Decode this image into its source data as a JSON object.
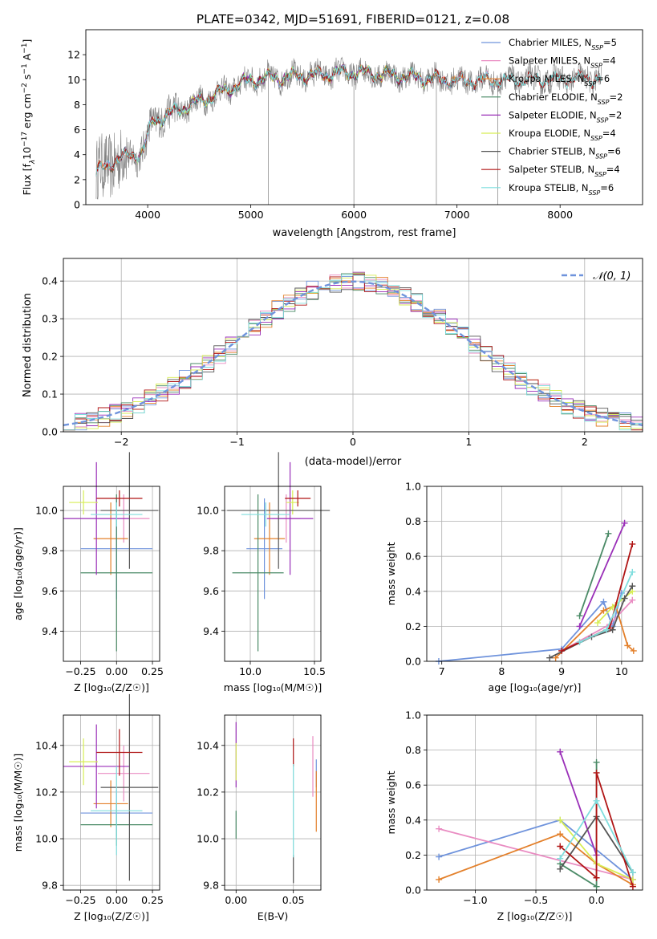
{
  "figure_title": "PLATE=0342, MJD=51691, FIBERID=0121, z=0.08",
  "colors": {
    "Chabrier MILES": "#6f93dc",
    "Salpeter MILES": "#e98cc2",
    "Kroupa MILES": "#e3802b",
    "Chabrier ELODIE": "#4a8a66",
    "Salpeter ELODIE": "#9a2fb8",
    "Kroupa ELODIE": "#d8ee55",
    "Chabrier STELIB": "#555555",
    "Salpeter STELIB": "#b01515",
    "Kroupa STELIB": "#7fdede"
  },
  "chart_data": [
    {
      "type": "line",
      "title": "PLATE=0342, MJD=51691, FIBERID=0121, z=0.08",
      "xlabel": "wavelength [Angstrom, rest frame]",
      "ylabel": "Flux [f",
      "xlim": [
        3400,
        8800
      ],
      "ylim": [
        0,
        14
      ],
      "xticks": [
        "4000",
        "5000",
        "6000",
        "7000",
        "8000"
      ],
      "yticks": [
        "0",
        "2",
        "4",
        "6",
        "8",
        "10",
        "12"
      ],
      "grid": false,
      "legend": "upper right",
      "data_series": [
        {
          "name": "data",
          "color": "#808080",
          "wavelength_range": [
            3500,
            8400
          ]
        }
      ],
      "series": [
        {
          "name": "Chabrier MILES",
          "nssp": "5",
          "range": [
            3500,
            7400
          ]
        },
        {
          "name": "Salpeter MILES",
          "nssp": "4",
          "range": [
            3500,
            7400
          ]
        },
        {
          "name": "Kroupa MILES",
          "nssp": "6",
          "range": [
            3500,
            7400
          ]
        },
        {
          "name": "Chabrier ELODIE",
          "nssp": "2",
          "range": [
            3900,
            6800
          ]
        },
        {
          "name": "Salpeter ELODIE",
          "nssp": "2",
          "range": [
            3900,
            6800
          ]
        },
        {
          "name": "Kroupa ELODIE",
          "nssp": "4",
          "range": [
            3900,
            6800
          ]
        },
        {
          "name": "Chabrier STELIB",
          "nssp": "6",
          "range": [
            3500,
            8400
          ]
        },
        {
          "name": "Salpeter STELIB",
          "nssp": "4",
          "range": [
            3500,
            8400
          ]
        },
        {
          "name": "Kroupa STELIB",
          "nssp": "6",
          "range": [
            3500,
            8400
          ]
        }
      ]
    },
    {
      "type": "histogram",
      "xlabel": "(data-model)/error",
      "ylabel": "Normed distribution",
      "xlim": [
        -2.5,
        2.5
      ],
      "ylim": [
        0,
        0.46
      ],
      "xticks": [
        "−2",
        "−1",
        "0",
        "1",
        "2"
      ],
      "yticks": [
        "0.0",
        "0.1",
        "0.2",
        "0.3",
        "0.4"
      ],
      "grid": true,
      "legend": "upper right",
      "reference_curve": {
        "label": "𝒩(0, 1)",
        "color": "#6f93dc",
        "mean": 0,
        "sigma": 1
      },
      "bins": {
        "start": -2.5,
        "width": 0.1,
        "count": 50
      }
    },
    {
      "type": "scatter",
      "xlabel": "Z [log₁₀(Z/Z☉)]",
      "ylabel": "age  [log₁₀(age/yr)]",
      "xlim": [
        -0.37,
        0.3
      ],
      "ylim": [
        9.25,
        10.12
      ],
      "xticks": [
        "−0.25",
        "0.00",
        "0.25"
      ],
      "yticks": [
        "9.4",
        "9.6",
        "9.8",
        "10.0"
      ],
      "grid": true,
      "points": [
        {
          "series": "Chabrier MILES",
          "x": 0.0,
          "xerr": 0.25,
          "y": 9.81,
          "yerr": 0.25
        },
        {
          "series": "Salpeter MILES",
          "x": 0.05,
          "xerr": 0.18,
          "y": 9.96,
          "yerr": 0.12
        },
        {
          "series": "Kroupa MILES",
          "x": -0.04,
          "xerr": 0.12,
          "y": 9.86,
          "yerr": 0.18
        },
        {
          "series": "Chabrier ELODIE",
          "x": 0.0,
          "xerr": 0.25,
          "y": 9.69,
          "yerr": 0.39
        },
        {
          "series": "Salpeter ELODIE",
          "x": -0.14,
          "xerr": 0.23,
          "y": 9.96,
          "yerr": 0.28
        },
        {
          "series": "Kroupa ELODIE",
          "x": -0.23,
          "xerr": 0.1,
          "y": 10.04,
          "yerr": 0.06
        },
        {
          "series": "Chabrier STELIB",
          "x": 0.09,
          "xerr": 0.2,
          "y": 10.0,
          "yerr": 0.29
        },
        {
          "series": "Salpeter STELIB",
          "x": 0.02,
          "xerr": 0.16,
          "y": 10.06,
          "yerr": 0.04
        },
        {
          "series": "Kroupa STELIB",
          "x": 0.0,
          "xerr": 0.18,
          "y": 9.98,
          "yerr": 0.06
        }
      ]
    },
    {
      "type": "scatter",
      "xlabel": "mass [log₁₀(M/M☉)]",
      "ylabel": "",
      "xlim": [
        9.8,
        10.55
      ],
      "ylim": [
        9.25,
        10.12
      ],
      "xticks": [
        "10.0",
        "10.5"
      ],
      "yticks": [
        "9.4",
        "9.6",
        "9.8",
        "10.0"
      ],
      "grid": true,
      "points": [
        {
          "series": "Chabrier MILES",
          "x": 10.11,
          "xerr": 0.14,
          "y": 9.81,
          "yerr": 0.25
        },
        {
          "series": "Salpeter MILES",
          "x": 10.28,
          "xerr": 0.11,
          "y": 9.96,
          "yerr": 0.12
        },
        {
          "series": "Kroupa MILES",
          "x": 10.15,
          "xerr": 0.12,
          "y": 9.86,
          "yerr": 0.18
        },
        {
          "series": "Chabrier ELODIE",
          "x": 10.06,
          "xerr": 0.2,
          "y": 9.69,
          "yerr": 0.39
        },
        {
          "series": "Salpeter ELODIE",
          "x": 10.31,
          "xerr": 0.18,
          "y": 9.96,
          "yerr": 0.28
        },
        {
          "series": "Kroupa ELODIE",
          "x": 10.33,
          "xerr": 0.05,
          "y": 10.04,
          "yerr": 0.06
        },
        {
          "series": "Chabrier STELIB",
          "x": 10.22,
          "xerr": 0.4,
          "y": 10.0,
          "yerr": 0.29
        },
        {
          "series": "Salpeter STELIB",
          "x": 10.37,
          "xerr": 0.1,
          "y": 10.06,
          "yerr": 0.04
        },
        {
          "series": "Kroupa STELIB",
          "x": 10.12,
          "xerr": 0.19,
          "y": 9.98,
          "yerr": 0.06
        }
      ]
    },
    {
      "type": "line",
      "xlabel": "age  [log₁₀(age/yr)]",
      "ylabel": "mass weight",
      "xlim": [
        6.75,
        10.35
      ],
      "ylim": [
        0,
        1.0
      ],
      "xticks": [
        "7",
        "8",
        "9",
        "10"
      ],
      "yticks": [
        "0.0",
        "0.2",
        "0.4",
        "0.6",
        "0.8",
        "1.0"
      ],
      "grid": true,
      "series": [
        {
          "name": "Chabrier MILES",
          "points": [
            [
              6.95,
              0.0
            ],
            [
              9.0,
              0.07
            ],
            [
              9.7,
              0.34
            ],
            [
              9.85,
              0.2
            ],
            [
              10.0,
              0.39
            ]
          ]
        },
        {
          "name": "Salpeter MILES",
          "points": [
            [
              9.0,
              0.06
            ],
            [
              9.8,
              0.21
            ],
            [
              10.18,
              0.35
            ]
          ]
        },
        {
          "name": "Kroupa MILES",
          "points": [
            [
              8.9,
              0.02
            ],
            [
              9.7,
              0.29
            ],
            [
              9.9,
              0.32
            ],
            [
              10.1,
              0.09
            ],
            [
              10.2,
              0.06
            ]
          ]
        },
        {
          "name": "Chabrier ELODIE",
          "points": [
            [
              9.3,
              0.26
            ],
            [
              9.78,
              0.73
            ]
          ]
        },
        {
          "name": "Salpeter ELODIE",
          "points": [
            [
              9.3,
              0.2
            ],
            [
              10.05,
              0.79
            ]
          ]
        },
        {
          "name": "Kroupa ELODIE",
          "points": [
            [
              9.6,
              0.22
            ],
            [
              9.85,
              0.31
            ],
            [
              10.18,
              0.4
            ]
          ]
        },
        {
          "name": "Chabrier STELIB",
          "points": [
            [
              8.8,
              0.02
            ],
            [
              9.5,
              0.14
            ],
            [
              9.85,
              0.18
            ],
            [
              10.05,
              0.36
            ],
            [
              10.18,
              0.43
            ]
          ]
        },
        {
          "name": "Salpeter STELIB",
          "points": [
            [
              9.0,
              0.06
            ],
            [
              9.8,
              0.19
            ],
            [
              10.18,
              0.67
            ]
          ]
        },
        {
          "name": "Kroupa STELIB",
          "points": [
            [
              9.3,
              0.11
            ],
            [
              9.75,
              0.18
            ],
            [
              10.18,
              0.51
            ]
          ]
        }
      ]
    },
    {
      "type": "scatter",
      "xlabel": "Z [log₁₀(Z/Z☉)]",
      "ylabel": "mass [log₁₀(M/M☉)]",
      "xlim": [
        -0.37,
        0.3
      ],
      "ylim": [
        9.78,
        10.53
      ],
      "xticks": [
        "−0.25",
        "0.00",
        "0.25"
      ],
      "yticks": [
        "9.8",
        "10.0",
        "10.2",
        "10.4"
      ],
      "grid": true,
      "points": [
        {
          "series": "Chabrier MILES",
          "x": 0.0,
          "xerr": 0.25,
          "y": 10.11,
          "yerr": 0.1
        },
        {
          "series": "Salpeter MILES",
          "x": 0.05,
          "xerr": 0.18,
          "y": 10.28,
          "yerr": 0.12
        },
        {
          "series": "Kroupa MILES",
          "x": -0.04,
          "xerr": 0.12,
          "y": 10.15,
          "yerr": 0.1
        },
        {
          "series": "Chabrier ELODIE",
          "x": 0.0,
          "xerr": 0.25,
          "y": 10.06,
          "yerr": 0.09
        },
        {
          "series": "Salpeter ELODIE",
          "x": -0.14,
          "xerr": 0.23,
          "y": 10.31,
          "yerr": 0.18
        },
        {
          "series": "Kroupa ELODIE",
          "x": -0.23,
          "xerr": 0.1,
          "y": 10.33,
          "yerr": 0.1
        },
        {
          "series": "Chabrier STELIB",
          "x": 0.09,
          "xerr": 0.2,
          "y": 10.22,
          "yerr": 0.4
        },
        {
          "series": "Salpeter STELIB",
          "x": 0.02,
          "xerr": 0.16,
          "y": 10.37,
          "yerr": 0.1
        },
        {
          "series": "Kroupa STELIB",
          "x": 0.0,
          "xerr": 0.18,
          "y": 10.12,
          "yerr": 0.19
        }
      ]
    },
    {
      "type": "scatter",
      "xlabel": "E(B-V)",
      "ylabel": "",
      "xlim": [
        -0.01,
        0.074
      ],
      "ylim": [
        9.78,
        10.53
      ],
      "xticks": [
        "0.00",
        "0.05"
      ],
      "yticks": [
        "9.8",
        "10.0",
        "10.2",
        "10.4"
      ],
      "grid": true,
      "points": [
        {
          "series": "Chabrier MILES",
          "x": 0.07,
          "y": 10.28,
          "yerr": 0.06
        },
        {
          "series": "Salpeter MILES",
          "x": 0.067,
          "y": 10.31,
          "yerr": 0.13
        },
        {
          "series": "Kroupa MILES",
          "x": 0.07,
          "y": 10.16,
          "yerr": 0.13
        },
        {
          "series": "Chabrier ELODIE",
          "x": 0.0,
          "y": 10.06,
          "yerr": 0.06
        },
        {
          "series": "Salpeter ELODIE",
          "x": 0.0,
          "y": 10.36,
          "yerr": 0.14
        },
        {
          "series": "Kroupa ELODIE",
          "x": 0.0,
          "y": 10.33,
          "yerr": 0.08
        },
        {
          "series": "Chabrier STELIB",
          "x": 0.05,
          "y": 9.87,
          "yerr": 0.06
        },
        {
          "series": "Salpeter STELIB",
          "x": 0.05,
          "y": 10.37,
          "yerr": 0.06
        },
        {
          "series": "Kroupa STELIB",
          "x": 0.05,
          "y": 10.12,
          "yerr": 0.2
        }
      ]
    },
    {
      "type": "line",
      "xlabel": "Z [log₁₀(Z/Z☉)]",
      "ylabel": "mass weight",
      "xlim": [
        -1.4,
        0.38
      ],
      "ylim": [
        0,
        1.0
      ],
      "xticks": [
        "−1.0",
        "−0.5",
        "0.0"
      ],
      "yticks": [
        "0.0",
        "0.2",
        "0.4",
        "0.6",
        "0.8",
        "1.0"
      ],
      "grid": true,
      "series": [
        {
          "name": "Chabrier MILES",
          "points": [
            [
              -1.3,
              0.19
            ],
            [
              -0.3,
              0.4
            ],
            [
              0.3,
              0.06
            ]
          ]
        },
        {
          "name": "Salpeter MILES",
          "points": [
            [
              -1.3,
              0.35
            ],
            [
              0.3,
              0.06
            ]
          ]
        },
        {
          "name": "Kroupa MILES",
          "points": [
            [
              -1.3,
              0.06
            ],
            [
              -0.3,
              0.32
            ],
            [
              0.0,
              0.15
            ],
            [
              0.3,
              0.03
            ]
          ]
        },
        {
          "name": "Chabrier ELODIE",
          "points": [
            [
              -0.3,
              0.15
            ],
            [
              0.0,
              0.02
            ],
            [
              0.0,
              0.73
            ]
          ]
        },
        {
          "name": "Salpeter ELODIE",
          "points": [
            [
              -0.3,
              0.79
            ],
            [
              0.0,
              0.2
            ]
          ]
        },
        {
          "name": "Kroupa ELODIE",
          "points": [
            [
              -0.3,
              0.4
            ],
            [
              0.0,
              0.15
            ],
            [
              0.3,
              0.06
            ]
          ]
        },
        {
          "name": "Chabrier STELIB",
          "points": [
            [
              -0.3,
              0.12
            ],
            [
              0.0,
              0.42
            ],
            [
              0.3,
              0.1
            ]
          ]
        },
        {
          "name": "Salpeter STELIB",
          "points": [
            [
              -0.3,
              0.25
            ],
            [
              0.0,
              0.07
            ],
            [
              0.0,
              0.67
            ],
            [
              0.3,
              0.02
            ]
          ]
        },
        {
          "name": "Kroupa STELIB",
          "points": [
            [
              -0.3,
              0.18
            ],
            [
              0.0,
              0.51
            ],
            [
              0.3,
              0.1
            ]
          ]
        }
      ]
    }
  ]
}
